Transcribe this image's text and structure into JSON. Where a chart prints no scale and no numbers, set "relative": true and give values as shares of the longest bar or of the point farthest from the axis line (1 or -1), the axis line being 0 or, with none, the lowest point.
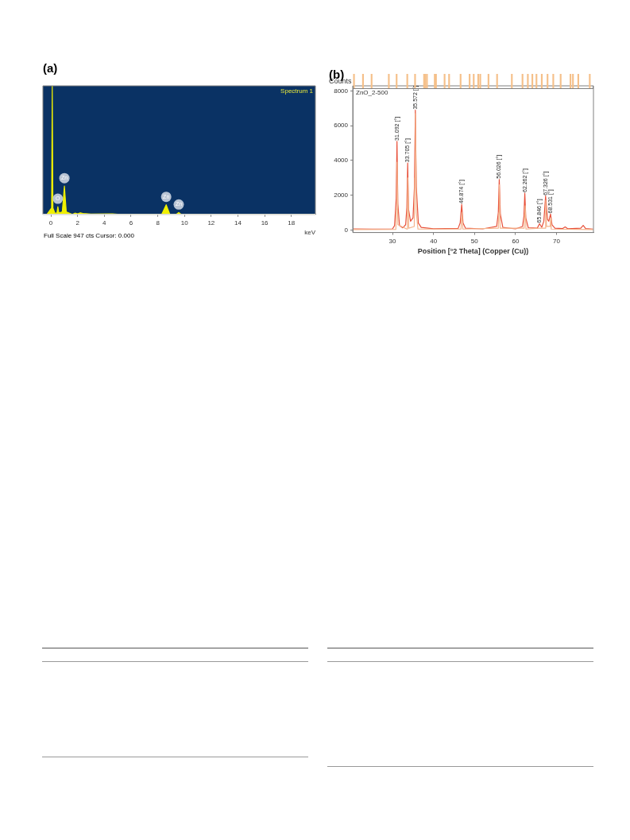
{
  "chart_data": [
    {
      "type": "area",
      "title": "(a)",
      "xlabel": "keV",
      "relative": true,
      "xlim": [
        -0.6,
        19.8
      ],
      "xticks": [
        0,
        2,
        4,
        6,
        8,
        10,
        12,
        14,
        16,
        18
      ],
      "grid": false,
      "annotations": [
        "Spectrum 1",
        "Full Scale 947 cts Cursor: 0.000",
        {
          "text": "O",
          "x": 0.52,
          "y": 0.06
        },
        {
          "text": "Zn",
          "x": 1.01,
          "y": 0.22
        },
        {
          "text": "Zn",
          "x": 8.63,
          "y": 0.075
        },
        {
          "text": "Zn",
          "x": 9.57,
          "y": 0.015
        }
      ],
      "series": [
        {
          "color": "#f0f000",
          "x": [
            -0.3,
            0.05,
            0.1,
            0.15,
            0.3,
            0.45,
            0.52,
            0.6,
            0.85,
            1.01,
            1.15,
            1.6,
            1.8,
            2.0,
            2.2,
            2.4,
            3.0,
            4.6,
            5.0,
            8.3,
            8.63,
            8.9,
            9.4,
            9.57,
            9.75,
            19.8
          ],
          "values": [
            0,
            0.05,
            1,
            0.05,
            0.01,
            0.01,
            0.06,
            0.01,
            0.02,
            0.22,
            0.02,
            0,
            0.01,
            0.005,
            0.012,
            0.008,
            0.003,
            0.004,
            0.002,
            0.002,
            0.075,
            0.002,
            0.002,
            0.015,
            0,
            0
          ]
        }
      ]
    },
    {
      "type": "line",
      "title": "(b)",
      "ylabel": "Counts",
      "xlabel": "Position [°2 Theta] (Copper (Cu))",
      "xlim": [
        20.3,
        79
      ],
      "xticks": [
        30,
        40,
        50,
        60,
        70
      ],
      "ylim": [
        -150,
        8300
      ],
      "yticks": [
        0,
        2000,
        4000,
        6000,
        8000
      ],
      "grid": false,
      "annotations": [
        "ZnO_2-500",
        {
          "text": "31.092 [°]",
          "x": 31.092,
          "y": 5100
        },
        {
          "text": "33.705 [°]",
          "x": 33.705,
          "y": 3850
        },
        {
          "text": "35.572 [°]",
          "x": 35.572,
          "y": 6900
        },
        {
          "text": "46.874 [°]",
          "x": 46.874,
          "y": 1470
        },
        {
          "text": "56.026 [°]",
          "x": 56.026,
          "y": 2910
        },
        {
          "text": "62.262 [°]",
          "x": 62.262,
          "y": 2120
        },
        {
          "text": "65.846 [°]",
          "x": 65.846,
          "y": 360
        },
        {
          "text": "67.326 [°]",
          "x": 67.326,
          "y": 1950
        },
        {
          "text": "68.531 [°]",
          "x": 68.531,
          "y": 910
        }
      ],
      "series": [
        {
          "color": "#f4b48c",
          "x": [
            20.5,
            30.8,
            31.0,
            31.12,
            31.3,
            33.5,
            33.65,
            33.75,
            33.95,
            35.3,
            35.45,
            35.6,
            35.8,
            36.2,
            46.7,
            46.85,
            46.95,
            47.15,
            55.8,
            55.95,
            56.05,
            56.25,
            62.1,
            62.25,
            62.35,
            62.55,
            65.9,
            67.2,
            67.35,
            67.55,
            68.45,
            68.55,
            68.7,
            78.9
          ],
          "values": [
            20,
            30,
            1200,
            3900,
            300,
            50,
            1100,
            3000,
            100,
            200,
            3000,
            6700,
            1000,
            50,
            50,
            700,
            1000,
            50,
            100,
            1000,
            2600,
            100,
            100,
            900,
            1400,
            50,
            100,
            100,
            1700,
            200,
            200,
            650,
            50,
            20
          ]
        },
        {
          "color": "#e8503a",
          "x": [
            20.5,
            25,
            30,
            30.5,
            30.9,
            31.09,
            31.3,
            31.7,
            32.5,
            33.2,
            33.5,
            33.7,
            33.9,
            34.4,
            35.0,
            35.35,
            35.57,
            35.8,
            36.3,
            37,
            40,
            46.0,
            46.5,
            46.87,
            47.2,
            47.8,
            52,
            55.4,
            55.8,
            56.03,
            56.3,
            56.9,
            60,
            61.7,
            62.05,
            62.26,
            62.5,
            63.1,
            65.3,
            65.85,
            66.4,
            66.9,
            67.33,
            67.8,
            68.1,
            68.53,
            68.9,
            69.6,
            71.5,
            72.1,
            72.7,
            75.9,
            76.5,
            77.1,
            78.9
          ],
          "values": [
            60,
            50,
            60,
            250,
            1800,
            5100,
            1500,
            250,
            120,
            300,
            1300,
            3850,
            1200,
            500,
            700,
            2500,
            6900,
            2500,
            400,
            150,
            70,
            90,
            400,
            1470,
            400,
            100,
            60,
            200,
            1000,
            2910,
            900,
            150,
            60,
            200,
            800,
            2120,
            700,
            130,
            100,
            360,
            150,
            500,
            1950,
            600,
            500,
            910,
            300,
            100,
            80,
            170,
            70,
            100,
            260,
            80,
            50
          ]
        }
      ]
    },
    {
      "type": "bar",
      "relative": true,
      "xlim": [
        20.3,
        79
      ],
      "series": [
        {
          "color": "#f5c08a",
          "x": [
            20.6,
            22.8,
            24.9,
            29.1,
            31.0,
            33.6,
            35.5,
            37.7,
            38.0,
            38.4,
            40.3,
            40.6,
            42.7,
            43.8,
            46.6,
            48.8,
            49.8,
            50.9,
            51.4,
            53.4,
            55.5,
            59.1,
            61.7,
            63.0,
            64.1,
            65.1,
            66.4,
            67.8,
            69.2,
            71.0,
            73.4,
            74.0,
            75.3,
            78.1
          ],
          "values": [
            1,
            1,
            1,
            1,
            1,
            1,
            1,
            1,
            1,
            1,
            1,
            1,
            1,
            1,
            1,
            1,
            1,
            1,
            1,
            1,
            1,
            1,
            1,
            1,
            1,
            1,
            1,
            1,
            1,
            1,
            1,
            1,
            1,
            1
          ]
        }
      ]
    }
  ]
}
